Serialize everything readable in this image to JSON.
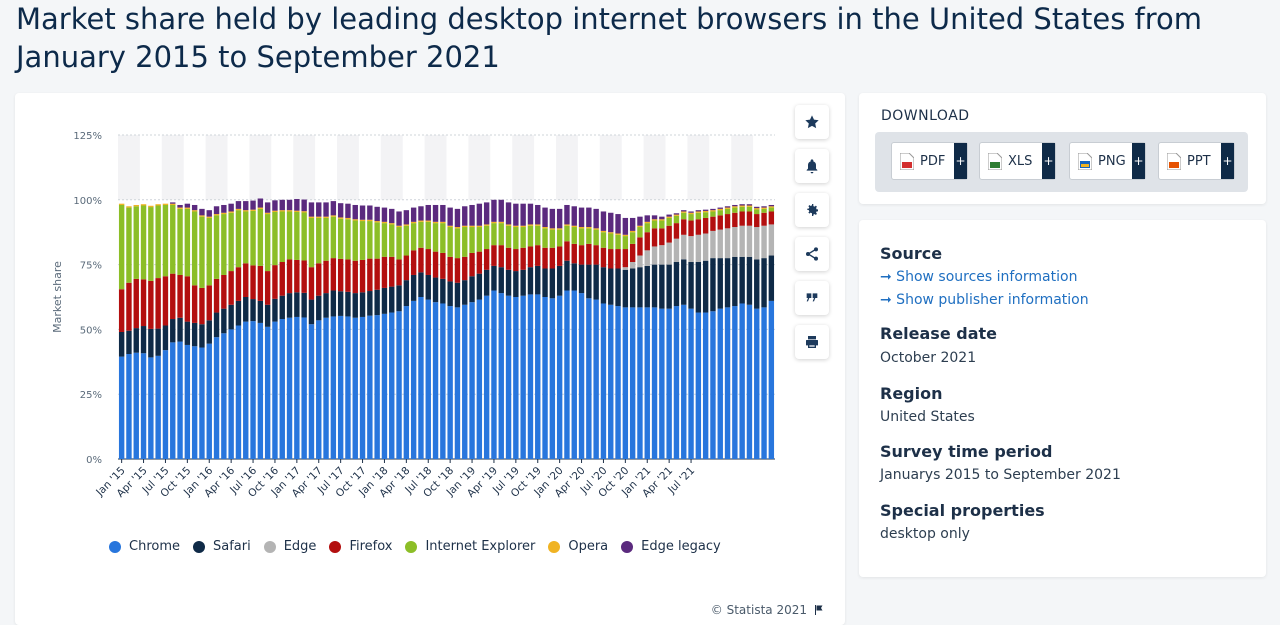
{
  "page": {
    "title": "Market share held by leading desktop internet browsers in the United States from January 2015 to September 2021"
  },
  "toolbar": {
    "icons": [
      "star-icon",
      "bell-icon",
      "gear-icon",
      "share-icon",
      "quote-icon",
      "print-icon"
    ]
  },
  "credit": {
    "text": "© Statista 2021"
  },
  "download": {
    "title": "DOWNLOAD",
    "buttons": [
      {
        "label": "PDF",
        "color": "#d32f2f"
      },
      {
        "label": "XLS",
        "color": "#2e7d32"
      },
      {
        "label": "PNG",
        "color": "#1565c0"
      },
      {
        "label": "PPT",
        "color": "#e65100"
      }
    ]
  },
  "info": {
    "source_label": "Source",
    "source_link1": "➞ Show sources information",
    "source_link2": "➞ Show publisher information",
    "release_label": "Release date",
    "release_value": "October 2021",
    "region_label": "Region",
    "region_value": "United States",
    "period_label": "Survey time period",
    "period_value": "Januarys 2015 to September 2021",
    "special_label": "Special properties",
    "special_value": "desktop only"
  },
  "chart_data": {
    "type": "bar",
    "stacked": true,
    "ylabel": "Market share",
    "ylim": [
      0,
      125
    ],
    "yticks": [
      0,
      25,
      50,
      75,
      100,
      125
    ],
    "ytick_labels": [
      "0%",
      "25%",
      "50%",
      "75%",
      "100%",
      "125%"
    ],
    "grid": true,
    "legend_position": "bottom",
    "x_tick_labels": [
      "Jan '15",
      "Apr '15",
      "Jul '15",
      "Oct '15",
      "Jan '16",
      "Apr '16",
      "Jul '16",
      "Oct '16",
      "Jan '17",
      "Apr '17",
      "Jul '17",
      "Oct '17",
      "Jan '18",
      "Apr '18",
      "Jul '18",
      "Oct '18",
      "Jan '19",
      "Apr '19",
      "Jul '19",
      "Oct '19",
      "Jan '20",
      "Apr '20",
      "Jul '20",
      "Oct '20",
      "Jan '21",
      "Apr '21",
      "Jul '21"
    ],
    "series": [
      {
        "name": "Chrome",
        "color": "#2876dd",
        "values": [
          39.5,
          40.5,
          41.0,
          40.8,
          39.2,
          39.8,
          42.0,
          45.0,
          45.3,
          44.0,
          43.5,
          43.0,
          44.5,
          47.0,
          48.5,
          50.0,
          51.5,
          53.0,
          53.2,
          52.5,
          51.0,
          53.0,
          54.0,
          54.5,
          54.8,
          54.6,
          52.0,
          53.5,
          54.5,
          55.0,
          55.2,
          55.0,
          54.5,
          54.8,
          55.3,
          55.5,
          56.0,
          56.5,
          57.0,
          59.0,
          61.0,
          62.5,
          61.5,
          60.5,
          60.0,
          59.0,
          58.5,
          59.5,
          60.5,
          61.5,
          63.0,
          65.0,
          64.0,
          63.0,
          62.5,
          63.0,
          63.5,
          63.5,
          62.5,
          62.0,
          63.0,
          65.0,
          65.0,
          64.0,
          62.0,
          61.5,
          60.0,
          59.5,
          59.0,
          58.5,
          58.5,
          58.5,
          58.5,
          58.5,
          58.0,
          58.0,
          59.0,
          59.5,
          58.0,
          56.5,
          56.5,
          57.0,
          58.0,
          58.5,
          59.0,
          60.0,
          59.5,
          58.0,
          58.5,
          61.0
        ]
      },
      {
        "name": "Safari",
        "color": "#0f2a47",
        "values": [
          9.5,
          9.0,
          9.5,
          10.5,
          11.0,
          10.5,
          9.5,
          9.0,
          9.2,
          9.0,
          9.0,
          9.0,
          9.0,
          9.5,
          9.5,
          9.5,
          9.5,
          9.5,
          8.5,
          8.5,
          8.5,
          8.8,
          9.0,
          9.5,
          9.5,
          9.5,
          9.5,
          9.5,
          9.5,
          10.0,
          9.5,
          9.5,
          9.5,
          9.5,
          9.5,
          9.8,
          10.0,
          10.0,
          10.0,
          10.0,
          10.0,
          9.5,
          9.5,
          9.5,
          9.5,
          9.5,
          9.5,
          9.5,
          10.0,
          10.0,
          10.0,
          9.5,
          10.0,
          10.0,
          10.0,
          10.0,
          10.5,
          11.0,
          11.0,
          11.5,
          11.5,
          11.5,
          10.5,
          11.0,
          13.0,
          13.5,
          14.0,
          14.0,
          14.5,
          14.5,
          15.0,
          15.5,
          16.0,
          16.5,
          17.0,
          17.0,
          17.0,
          17.5,
          18.0,
          19.5,
          20.0,
          20.5,
          19.5,
          19.0,
          19.0,
          18.0,
          18.5,
          19.0,
          19.0,
          17.5
        ]
      },
      {
        "name": "Edge",
        "color": "#b4b4b4",
        "values": [
          0,
          0,
          0,
          0,
          0,
          0,
          0,
          0,
          0,
          0,
          0,
          0,
          0,
          0,
          0,
          0,
          0,
          0,
          0,
          0,
          0,
          0,
          0,
          0,
          0,
          0,
          0,
          0,
          0,
          0,
          0,
          0,
          0,
          0,
          0,
          0,
          0,
          0,
          0,
          0,
          0,
          0,
          0,
          0,
          0,
          0,
          0,
          0,
          0,
          0,
          0,
          0,
          0,
          0,
          0,
          0,
          0,
          0,
          0,
          0,
          0,
          0,
          0,
          0,
          0,
          0,
          0,
          0,
          0,
          1.0,
          2.5,
          4.5,
          6.0,
          7.0,
          7.5,
          8.5,
          9.0,
          9.5,
          10.0,
          10.5,
          10.5,
          10.5,
          11.0,
          11.5,
          11.5,
          12.0,
          12.0,
          12.5,
          12.5,
          12.0
        ]
      },
      {
        "name": "Firefox",
        "color": "#b30f0f",
        "values": [
          16.5,
          18.5,
          19.0,
          18.0,
          18.5,
          19.5,
          19.0,
          17.5,
          16.5,
          17.5,
          14.5,
          14.0,
          13.5,
          13.0,
          13.0,
          13.0,
          13.0,
          13.0,
          13.0,
          13.5,
          13.0,
          13.0,
          13.0,
          13.0,
          12.5,
          12.5,
          12.5,
          12.5,
          12.5,
          12.5,
          12.5,
          12.5,
          12.5,
          12.5,
          12.5,
          12.0,
          12.0,
          11.5,
          10.0,
          9.5,
          9.5,
          9.5,
          10.0,
          10.0,
          10.0,
          9.5,
          9.5,
          9.0,
          9.0,
          8.5,
          8.0,
          8.0,
          8.5,
          8.5,
          8.5,
          8.5,
          8.0,
          8.0,
          8.0,
          8.0,
          7.5,
          7.5,
          7.5,
          7.5,
          8.0,
          7.5,
          7.5,
          7.5,
          7.5,
          7.0,
          7.0,
          7.0,
          7.0,
          7.0,
          6.5,
          6.5,
          6.0,
          6.0,
          6.0,
          6.0,
          6.0,
          5.5,
          5.5,
          5.5,
          5.5,
          5.5,
          5.5,
          5.0,
          5.0,
          5.0
        ]
      },
      {
        "name": "Internet Explorer",
        "color": "#8cbe27",
        "values": [
          32.5,
          29.0,
          28.0,
          28.5,
          28.5,
          28.0,
          27.5,
          26.5,
          25.5,
          26.0,
          28.5,
          27.5,
          26.0,
          24.5,
          23.5,
          22.5,
          22.0,
          20.0,
          21.0,
          22.0,
          22.0,
          20.5,
          19.5,
          18.5,
          18.5,
          18.5,
          19.0,
          17.5,
          16.5,
          16.0,
          15.5,
          15.5,
          15.5,
          15.0,
          14.5,
          14.0,
          13.0,
          12.5,
          12.5,
          11.5,
          10.5,
          10.0,
          10.5,
          11.0,
          11.5,
          11.5,
          11.5,
          11.5,
          10.0,
          9.5,
          9.0,
          8.5,
          8.5,
          8.5,
          8.5,
          8.0,
          8.0,
          7.5,
          7.5,
          7.0,
          6.5,
          6.0,
          6.5,
          6.5,
          6.0,
          6.0,
          6.0,
          6.0,
          5.5,
          5.0,
          4.5,
          4.0,
          3.5,
          3.0,
          3.0,
          3.0,
          2.8,
          2.5,
          2.5,
          2.5,
          2.2,
          2.0,
          2.0,
          2.0,
          2.0,
          1.8,
          1.8,
          1.8,
          1.5,
          1.5
        ]
      },
      {
        "name": "Opera",
        "color": "#f0b323",
        "values": [
          0.5,
          0.5,
          0.5,
          0.5,
          0.5,
          0.5,
          0.5,
          0.5,
          0.5,
          0.5,
          0.5,
          0.5,
          0.5,
          0.5,
          0.5,
          0.5,
          0.5,
          0.5,
          0.5,
          0.5,
          0.5,
          0.5,
          0.5,
          0.5,
          0.5,
          0.5,
          0.5,
          0.5,
          0.5,
          0.5,
          0.5,
          0.5,
          0.5,
          0.5,
          0.5,
          0.5,
          0.5,
          0.5,
          0.5,
          0.5,
          0.5,
          0.5,
          0.5,
          0.5,
          0.5,
          0.5,
          0.5,
          0.5,
          0.5,
          0.5,
          0.5,
          0.5,
          0.5,
          0.5,
          0.5,
          0.5,
          0.5,
          0.5,
          0.5,
          0.5,
          0.5,
          0.5,
          0.5,
          0.5,
          0.5,
          0.5,
          0.5,
          0.5,
          0.5,
          0.5,
          0.5,
          0.5,
          0.5,
          0.5,
          0.5,
          0.5,
          0.5,
          0.5,
          0.5,
          0.5,
          0.5,
          0.5,
          0.5,
          0.5,
          0.5,
          0.5,
          0.5,
          0.5,
          0.5,
          0.5
        ]
      },
      {
        "name": "Edge legacy",
        "color": "#5b2a7e",
        "values": [
          0,
          0,
          0,
          0,
          0,
          0,
          0,
          0.5,
          1.0,
          1.5,
          2.0,
          2.5,
          2.5,
          3.0,
          3.0,
          3.0,
          3.0,
          3.5,
          3.5,
          3.5,
          4.0,
          4.0,
          4.0,
          4.0,
          4.5,
          4.5,
          5.5,
          5.5,
          5.5,
          5.5,
          5.5,
          5.5,
          5.5,
          5.5,
          5.5,
          5.5,
          5.5,
          5.5,
          5.5,
          5.5,
          5.5,
          5.5,
          6.0,
          6.5,
          6.5,
          7.0,
          7.0,
          7.5,
          8.0,
          8.5,
          8.5,
          8.5,
          8.5,
          8.5,
          8.5,
          8.5,
          8.0,
          7.5,
          7.5,
          7.5,
          7.5,
          7.5,
          7.5,
          7.5,
          7.5,
          7.5,
          7.5,
          7.5,
          7.5,
          6.5,
          5.0,
          3.5,
          2.5,
          1.5,
          1.0,
          0.8,
          0.5,
          0.5,
          0.5,
          0.5,
          0.5,
          0.5,
          0.5,
          0.5,
          0.5,
          0.5,
          0.5,
          0.5,
          0.5,
          0.5
        ]
      }
    ]
  }
}
